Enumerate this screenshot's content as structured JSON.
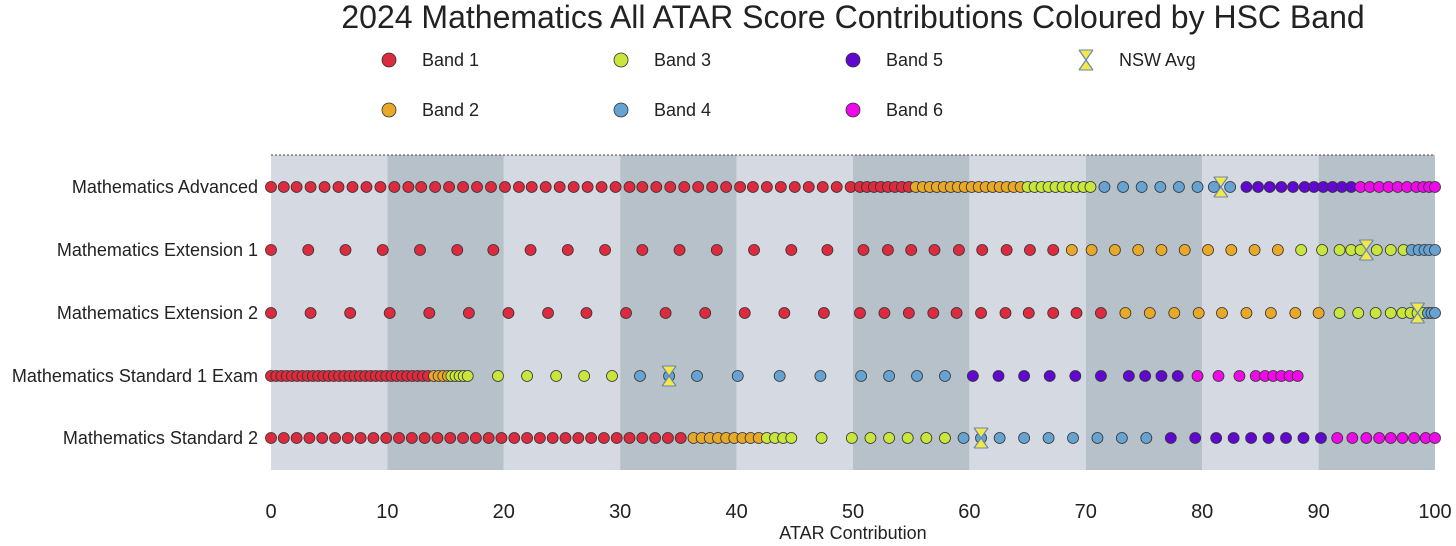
{
  "chart_data": {
    "type": "scatter",
    "title": "2024 Mathematics All ATAR Score Contributions Coloured by HSC Band",
    "xlabel": "ATAR Contribution",
    "ylabel": "",
    "xlim": [
      0,
      100
    ],
    "xticks": [
      "0",
      "10",
      "20",
      "30",
      "40",
      "50",
      "60",
      "70",
      "80",
      "90",
      "100"
    ],
    "band_colors": {
      "Band 1": "#dc2a3e",
      "Band 2": "#e8a828",
      "Band 3": "#c8e63c",
      "Band 4": "#66a3d2",
      "Band 5": "#6008d0",
      "Band 6": "#ee0ae8",
      "NSW Avg": "#f2e84a"
    },
    "legend": [
      "Band 1",
      "Band 2",
      "Band 3",
      "Band 4",
      "Band 5",
      "Band 6",
      "NSW Avg"
    ],
    "categories": [
      "Mathematics Advanced",
      "Mathematics Extension 1",
      "Mathematics Extension 2",
      "Mathematics Standard 1 Exam",
      "Mathematics Standard 2"
    ],
    "series": [
      {
        "name": "Mathematics Advanced",
        "nsw_avg": 81.6,
        "segments": [
          {
            "band": "Band 1",
            "values": [
              0,
              1.1,
              2.2,
              3.4,
              4.6,
              5.8,
              7.0,
              8.2,
              9.4,
              10.6,
              11.8,
              12.9,
              14.1,
              15.3,
              16.5,
              17.7,
              18.9,
              20.1,
              21.3,
              22.4,
              23.6,
              24.8,
              26.0,
              27.2,
              28.4,
              29.6,
              30.8,
              31.9,
              33.1,
              34.3,
              35.5,
              36.7,
              37.9,
              39.1,
              40.3,
              41.4,
              42.6,
              43.8,
              45.0,
              46.2,
              47.4,
              48.6,
              49.8,
              50.6,
              51.2,
              51.8,
              52.4,
              53.0,
              53.6,
              54.2,
              54.8
            ]
          },
          {
            "band": "Band 2",
            "values": [
              55.4,
              56.0,
              56.6,
              57.2,
              57.8,
              58.4,
              59.0,
              59.6,
              60.2,
              60.8,
              61.4,
              62.0,
              62.6,
              63.2,
              63.8,
              64.4
            ]
          },
          {
            "band": "Band 3",
            "values": [
              65.0,
              65.6,
              66.2,
              66.8,
              67.4,
              68.0,
              68.6,
              69.2,
              69.8,
              70.4
            ]
          },
          {
            "band": "Band 4",
            "values": [
              71.6,
              73.2,
              74.8,
              76.4,
              78.0,
              79.6,
              81.0,
              82.4
            ]
          },
          {
            "band": "Band 5",
            "values": [
              83.8,
              84.8,
              85.8,
              86.8,
              87.8,
              88.8,
              89.6,
              90.4,
              91.2,
              92.0,
              92.8
            ]
          },
          {
            "band": "Band 6",
            "values": [
              93.6,
              94.4,
              95.2,
              96.0,
              96.8,
              97.6,
              98.4,
              99.0,
              99.5,
              100
            ]
          }
        ]
      },
      {
        "name": "Mathematics Extension 1",
        "nsw_avg": 94.1,
        "segments": [
          {
            "band": "Band 1",
            "values": [
              0,
              3.2,
              6.4,
              9.6,
              12.8,
              16.0,
              19.1,
              22.3,
              25.5,
              28.7,
              31.9,
              35.1,
              38.3,
              41.5,
              44.7,
              47.8,
              50.9,
              53.0,
              55.0,
              57.0,
              59.1,
              61.1,
              63.2,
              65.2,
              67.2
            ]
          },
          {
            "band": "Band 2",
            "values": [
              68.8,
              70.5,
              72.5,
              74.5,
              76.5,
              78.5,
              80.5,
              82.5,
              84.5,
              86.5
            ]
          },
          {
            "band": "Band 3",
            "values": [
              88.5,
              90.3,
              91.8,
              92.8,
              93.6,
              95.0,
              96.2,
              97.3
            ]
          },
          {
            "band": "Band 4",
            "values": [
              98.0,
              98.6,
              99.1,
              99.5,
              100
            ]
          }
        ]
      },
      {
        "name": "Mathematics Extension 2",
        "nsw_avg": 98.5,
        "segments": [
          {
            "band": "Band 1",
            "values": [
              0,
              3.4,
              6.8,
              10.2,
              13.6,
              17.0,
              20.4,
              23.8,
              27.1,
              30.5,
              33.9,
              37.3,
              40.7,
              44.1,
              47.5,
              50.6,
              52.7,
              54.8,
              56.9,
              58.9,
              61.0,
              63.1,
              65.1,
              67.2,
              69.2,
              71.3
            ]
          },
          {
            "band": "Band 2",
            "values": [
              73.4,
              75.5,
              77.6,
              79.7,
              81.7,
              83.8,
              85.9,
              88.0,
              90.0
            ]
          },
          {
            "band": "Band 3",
            "values": [
              91.8,
              93.4,
              94.9,
              96.2,
              97.2,
              97.9,
              98.5,
              99.0
            ]
          },
          {
            "band": "Band 4",
            "values": [
              99.4,
              99.7,
              100
            ]
          }
        ]
      },
      {
        "name": "Mathematics Standard 1 Exam",
        "nsw_avg": 34.2,
        "segments": [
          {
            "band": "Band 1",
            "values": [
              0,
              0.45,
              0.9,
              1.35,
              1.8,
              2.25,
              2.7,
              3.15,
              3.6,
              4.05,
              4.5,
              4.95,
              5.4,
              5.85,
              6.3,
              6.75,
              7.2,
              7.65,
              8.1,
              8.55,
              9.0,
              9.45,
              9.9,
              10.35,
              10.8,
              11.25,
              11.7,
              12.15,
              12.6,
              13.05,
              13.5
            ]
          },
          {
            "band": "Band 2",
            "values": [
              14.0,
              14.4,
              14.8,
              15.2
            ]
          },
          {
            "band": "Band 3",
            "values": [
              15.5,
              15.85,
              16.2,
              16.55,
              16.9,
              19.5,
              22.0,
              24.5,
              26.9,
              29.3
            ]
          },
          {
            "band": "Band 4",
            "values": [
              31.7,
              34.2,
              36.6,
              40.1,
              43.7,
              47.2,
              50.7,
              53.1,
              55.5,
              57.9
            ]
          },
          {
            "band": "Band 5",
            "values": [
              60.3,
              62.5,
              64.7,
              66.9,
              69.1,
              71.3,
              73.7,
              75.1,
              76.5,
              77.9
            ]
          },
          {
            "band": "Band 6",
            "values": [
              79.6,
              81.4,
              83.2,
              84.6,
              85.4,
              86.1,
              86.8,
              87.5,
              88.2
            ]
          }
        ]
      },
      {
        "name": "Mathematics Standard 2",
        "nsw_avg": 61.0,
        "segments": [
          {
            "band": "Band 1",
            "values": [
              0,
              1.1,
              2.2,
              3.3,
              4.4,
              5.5,
              6.6,
              7.7,
              8.8,
              9.9,
              11.0,
              12.1,
              13.2,
              14.3,
              15.4,
              16.5,
              17.6,
              18.7,
              19.8,
              20.9,
              22.0,
              23.1,
              24.2,
              25.3,
              26.4,
              27.5,
              28.6,
              29.7,
              30.8,
              31.9,
              33.0,
              34.1,
              35.2
            ]
          },
          {
            "band": "Band 2",
            "values": [
              36.3,
              37.0,
              37.7,
              38.4,
              39.1,
              39.8,
              40.5,
              41.2,
              41.9
            ]
          },
          {
            "band": "Band 3",
            "values": [
              42.6,
              43.3,
              44.0,
              44.7,
              47.3,
              49.9,
              51.5,
              53.1,
              54.7,
              56.3,
              57.9
            ]
          },
          {
            "band": "Band 4",
            "values": [
              59.5,
              61.0,
              62.6,
              64.7,
              66.8,
              68.9,
              71.0,
              73.1,
              75.2
            ]
          },
          {
            "band": "Band 5",
            "values": [
              77.3,
              79.4,
              81.2,
              82.7,
              84.2,
              85.7,
              87.2,
              88.7,
              90.2
            ]
          },
          {
            "band": "Band 6",
            "values": [
              91.6,
              92.9,
              94.1,
              95.2,
              96.2,
              97.2,
              98.2,
              99.2,
              100
            ]
          }
        ]
      }
    ]
  }
}
